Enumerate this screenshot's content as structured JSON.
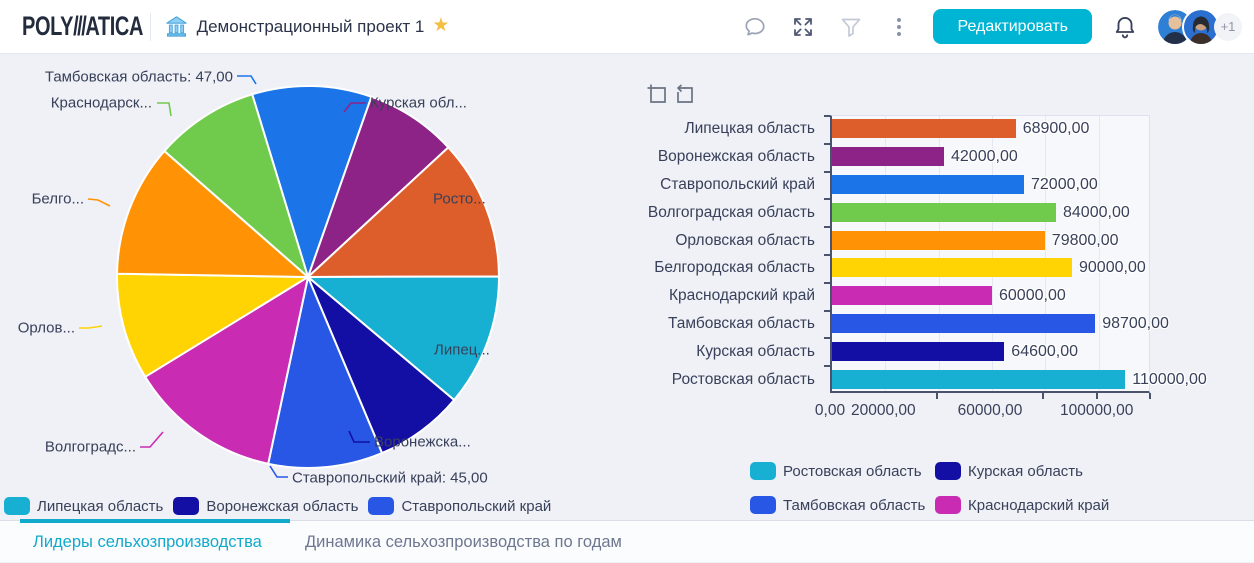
{
  "header": {
    "logo_part1": "POLY",
    "logo_slashes": "///",
    "logo_part2": "ATICA",
    "project_title": "Демонстрационный проект 1",
    "edit_button_label": "Редактировать",
    "extra_users_badge": "+1",
    "icons": [
      "project-building-icon",
      "favorite-star-icon",
      "comment-icon",
      "fullscreen-icon",
      "filter-icon",
      "kebab-menu-icon",
      "notifications-bell-icon"
    ],
    "colors": {
      "edit_button": "#00b4d3",
      "star": "#f2bf42",
      "active_tab": "#11a9cc"
    }
  },
  "panel_tools": {
    "icons": [
      "zoom-selection-icon",
      "undo-selection-icon"
    ]
  },
  "chart_data": [
    {
      "type": "pie",
      "start_angle_deg": -17,
      "note": "values without visible numeric labels are estimated from arc angles",
      "slices": [
        {
          "label": "Тамбовская область",
          "value": 47.0,
          "value_shown": true,
          "color": "#1b75e8",
          "callout": "Тамбовская область: 47,00"
        },
        {
          "label": "Курская область",
          "value": 36.0,
          "value_shown": false,
          "color": "#8d2386",
          "callout": "Курская обл..."
        },
        {
          "label": "Ростовская область",
          "value": 55.0,
          "value_shown": false,
          "color": "#dd5e2b",
          "callout": "Росто..."
        },
        {
          "label": "Липецкая область",
          "value": 52.0,
          "value_shown": false,
          "color": "#18b0d2",
          "callout": "Липец..."
        },
        {
          "label": "Воронежская область",
          "value": 35.0,
          "value_shown": false,
          "color": "#140fa4",
          "callout": "Воронежска..."
        },
        {
          "label": "Ставропольский край",
          "value": 45.0,
          "value_shown": true,
          "color": "#2857e6",
          "callout": "Ставропольский край: 45,00"
        },
        {
          "label": "Волгоградская область",
          "value": 60.0,
          "value_shown": false,
          "color": "#c92cb3",
          "callout": "Волгоградс..."
        },
        {
          "label": "Орловская область",
          "value": 42.0,
          "value_shown": false,
          "color": "#ffd402",
          "callout": "Орлов..."
        },
        {
          "label": "Белгородская область",
          "value": 52.0,
          "value_shown": false,
          "color": "#ff9305",
          "callout": "Белго..."
        },
        {
          "label": "Краснодарский край",
          "value": 41.0,
          "value_shown": false,
          "color": "#70cb4c",
          "callout": "Краснодарск..."
        }
      ],
      "legend": [
        {
          "label": "Липецкая область",
          "color": "#18b0d2"
        },
        {
          "label": "Воронежская область",
          "color": "#140fa4"
        },
        {
          "label": "Ставропольский край",
          "color": "#2857e6"
        }
      ]
    },
    {
      "type": "bar",
      "orientation": "horizontal",
      "categories": [
        "Липецкая область",
        "Воронежская область",
        "Ставропольский край",
        "Волгоградская область",
        "Орловская область",
        "Белгородская область",
        "Краснодарский край",
        "Тамбовская область",
        "Курская область",
        "Ростовская область"
      ],
      "values": [
        68900,
        42000,
        72000,
        84000,
        79800,
        90000,
        60000,
        98700,
        64600,
        110000
      ],
      "value_labels": [
        "68900,00",
        "42000,00",
        "72000,00",
        "84000,00",
        "79800,00",
        "90000,00",
        "60000,00",
        "98700,00",
        "64600,00",
        "110000,00"
      ],
      "colors": [
        "#dd5e2b",
        "#8d2386",
        "#1b75e8",
        "#70cb4c",
        "#ff9305",
        "#ffd402",
        "#c92cb3",
        "#2857e6",
        "#140fa4",
        "#18b0d2"
      ],
      "xlim": [
        0,
        120000
      ],
      "grid_step": 20000,
      "xticks": [
        {
          "value": 0,
          "label": "0,00"
        },
        {
          "value": 20000,
          "label": "20000,00"
        },
        {
          "value": 60000,
          "label": "60000,00"
        },
        {
          "value": 100000,
          "label": "100000,00"
        }
      ],
      "minor_tick_values": [
        40000,
        80000,
        100000,
        120000
      ],
      "legend": [
        {
          "label": "Ростовская область",
          "color": "#18b0d2"
        },
        {
          "label": "Курская область",
          "color": "#140fa4"
        },
        {
          "label": "Тамбовская область",
          "color": "#2857e6"
        },
        {
          "label": "Краснодарский край",
          "color": "#c92cb3"
        }
      ]
    }
  ],
  "tabs": [
    {
      "label": "Лидеры сельхозпроизводства",
      "active": true
    },
    {
      "label": "Динамика сельхозпроизводства по годам",
      "active": false
    }
  ]
}
